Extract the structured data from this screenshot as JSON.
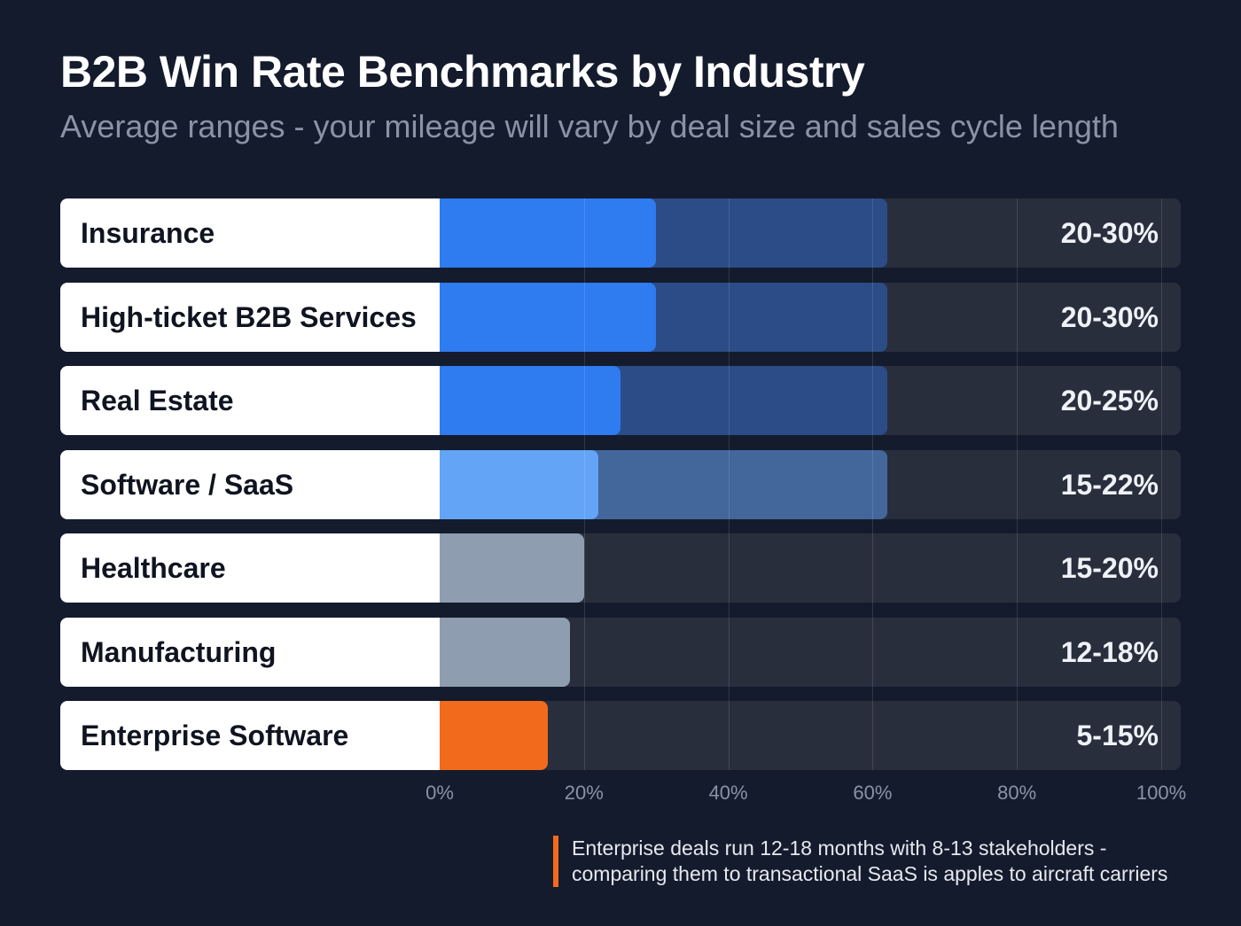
{
  "chart_data": {
    "type": "bar",
    "title": "B2B Win Rate Benchmarks by Industry",
    "subtitle": "Average ranges - your mileage will vary by deal size and sales cycle length",
    "xlim": [
      0,
      100
    ],
    "x_ticks": [
      "0%",
      "20%",
      "40%",
      "60%",
      "80%",
      "100%"
    ],
    "tick_values": [
      0,
      20,
      40,
      60,
      80,
      100
    ],
    "grid": true,
    "categories": [
      "Insurance",
      "High-ticket B2B Services",
      "Real Estate",
      "Software / SaaS",
      "Healthcare",
      "Manufacturing",
      "Enterprise Software"
    ],
    "range_labels": [
      "20-30%",
      "20-30%",
      "20-25%",
      "15-22%",
      "15-20%",
      "12-18%",
      "5-15%"
    ],
    "values": [
      30,
      30,
      25,
      22,
      20,
      18,
      15
    ],
    "band_end": [
      62,
      62,
      62,
      62,
      null,
      null,
      null
    ],
    "bar_colors": [
      "#2f7bf0",
      "#2f7bf0",
      "#2f7bf0",
      "#63a4f7",
      "#8f9db0",
      "#8f9db0",
      "#f26b1d"
    ],
    "band_colors": [
      "#2c4c88",
      "#2c4c88",
      "#2c4c88",
      "#43679a",
      null,
      null,
      null
    ]
  },
  "note": {
    "line1": "Enterprise deals run 12-18 months with 8-13 stakeholders -",
    "line2": "comparing them to transactional SaaS is apples to aircraft carriers"
  }
}
